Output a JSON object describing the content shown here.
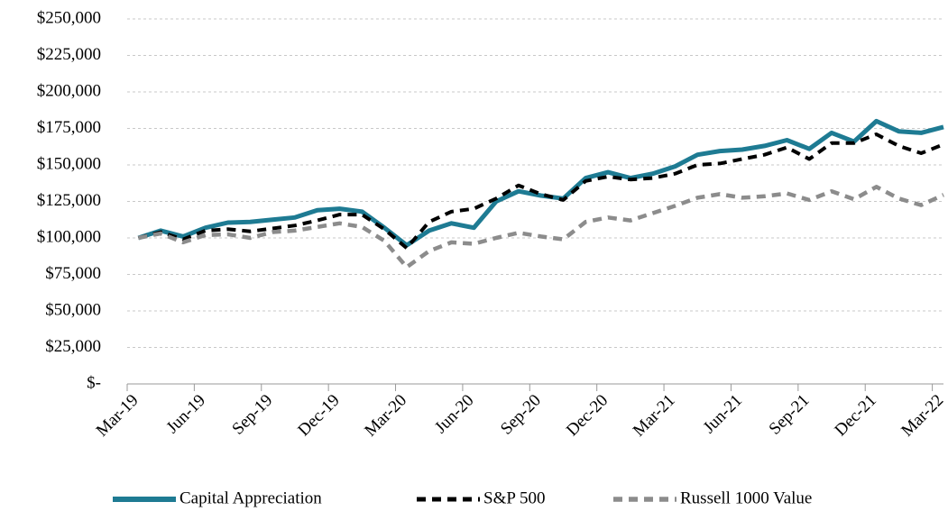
{
  "chart_data": {
    "type": "line",
    "categories": [
      "Mar-19",
      null,
      null,
      "Jun-19",
      null,
      null,
      "Sep-19",
      null,
      null,
      "Dec-19",
      null,
      null,
      "Mar-20",
      null,
      null,
      "Jun-20",
      null,
      null,
      "Sep-20",
      null,
      null,
      "Dec-20",
      null,
      null,
      "Mar-21",
      null,
      null,
      "Jun-21",
      null,
      null,
      "Sep-21",
      null,
      null,
      "Dec-21",
      null,
      null,
      "Mar-22"
    ],
    "series": [
      {
        "name": "Capital Appreciation",
        "color": "#1e7b93",
        "values": [
          100000,
          105000,
          101000,
          107000,
          110500,
          111000,
          112500,
          114000,
          119000,
          120000,
          118000,
          107000,
          95000,
          105000,
          110000,
          107000,
          125000,
          132000,
          129000,
          127000,
          141000,
          145000,
          141000,
          144000,
          149000,
          157000,
          159500,
          160500,
          163000,
          167000,
          161000,
          172000,
          166000,
          180000,
          173000,
          172000,
          176000
        ]
      },
      {
        "name": "S&P 500",
        "color": "#000000",
        "values": [
          100000,
          104000,
          99000,
          105000,
          106000,
          104500,
          106500,
          108500,
          112000,
          116000,
          116000,
          106000,
          93000,
          111000,
          118000,
          120000,
          127000,
          136000,
          130000,
          126000,
          139000,
          142000,
          140000,
          141000,
          144000,
          150000,
          151000,
          154000,
          157000,
          162000,
          154000,
          165000,
          165000,
          171000,
          163000,
          158000,
          164000
        ]
      },
      {
        "name": "Russell 1000 Value",
        "color": "#8c8c8c",
        "values": [
          100000,
          103000,
          97000,
          102000,
          102500,
          100000,
          104000,
          105000,
          107500,
          110000,
          107500,
          98000,
          80000,
          91000,
          97000,
          96000,
          100000,
          103500,
          101000,
          99000,
          111000,
          114000,
          112000,
          117000,
          122000,
          127500,
          130000,
          127500,
          128500,
          130500,
          126000,
          132000,
          126500,
          135000,
          127000,
          122500,
          129500
        ]
      }
    ],
    "ylim": [
      0,
      250000
    ],
    "yticks": [
      {
        "value": 0,
        "label": "$-"
      },
      {
        "value": 25000,
        "label": "$25,000"
      },
      {
        "value": 50000,
        "label": "$50,000"
      },
      {
        "value": 75000,
        "label": "$75,000"
      },
      {
        "value": 100000,
        "label": "$100,000"
      },
      {
        "value": 125000,
        "label": "$125,000"
      },
      {
        "value": 150000,
        "label": "$150,000"
      },
      {
        "value": 175000,
        "label": "$175,000"
      },
      {
        "value": 200000,
        "label": "$200,000"
      },
      {
        "value": 225000,
        "label": "$225,000"
      },
      {
        "value": 250000,
        "label": "$250,000"
      }
    ],
    "grid": true,
    "legend": "bottom"
  }
}
